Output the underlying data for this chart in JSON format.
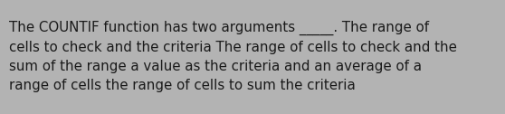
{
  "background_color": "#b3b3b3",
  "text_color": "#1a1a1a",
  "line1": "The COUNTIF function has two arguments _____. The range of",
  "line2": "cells to check and the criteria The range of cells to check and the",
  "line3": "sum of the range a value as the criteria and an average of a",
  "line4": "range of cells the range of cells to sum the criteria",
  "font_size": 10.8,
  "fig_width": 5.58,
  "fig_height": 1.26,
  "dpi": 100
}
